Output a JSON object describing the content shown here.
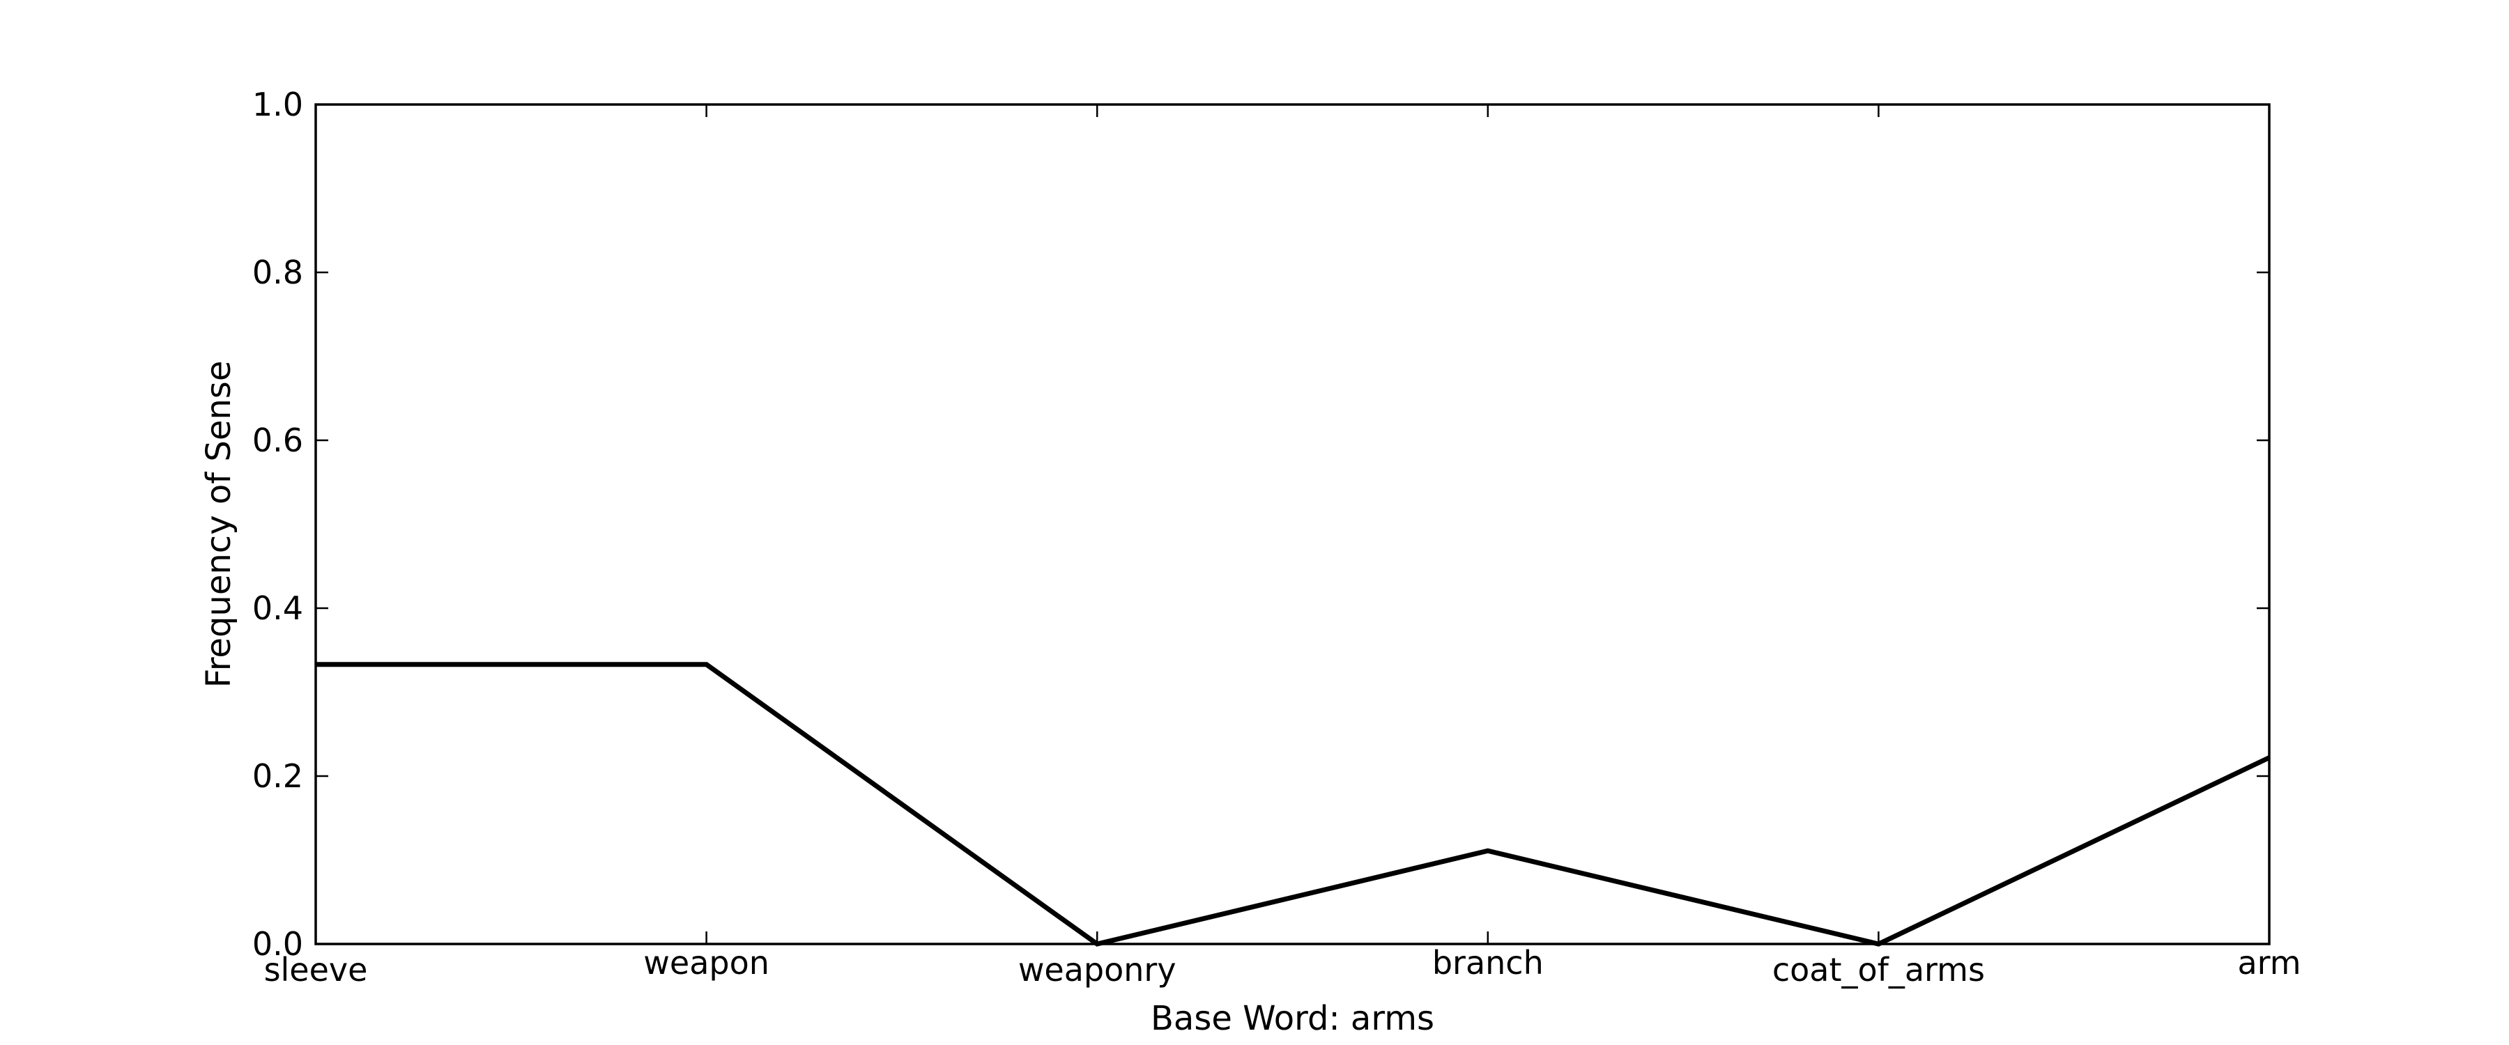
{
  "chart_data": {
    "type": "line",
    "categories": [
      "sleeve",
      "weapon",
      "weaponry",
      "branch",
      "coat_of_arms",
      "arm"
    ],
    "series": [
      {
        "values": [
          0.333,
          0.333,
          0.0,
          0.111,
          0.0,
          0.222
        ],
        "color": "#000000"
      }
    ],
    "title": "",
    "xlabel": "Base Word: arms",
    "ylabel": "Frequency of Sense",
    "ylim": [
      0.0,
      1.0
    ],
    "yticks": [
      "0.0",
      "0.2",
      "0.4",
      "0.6",
      "0.8",
      "1.0"
    ],
    "grid": false,
    "legend": "none"
  }
}
